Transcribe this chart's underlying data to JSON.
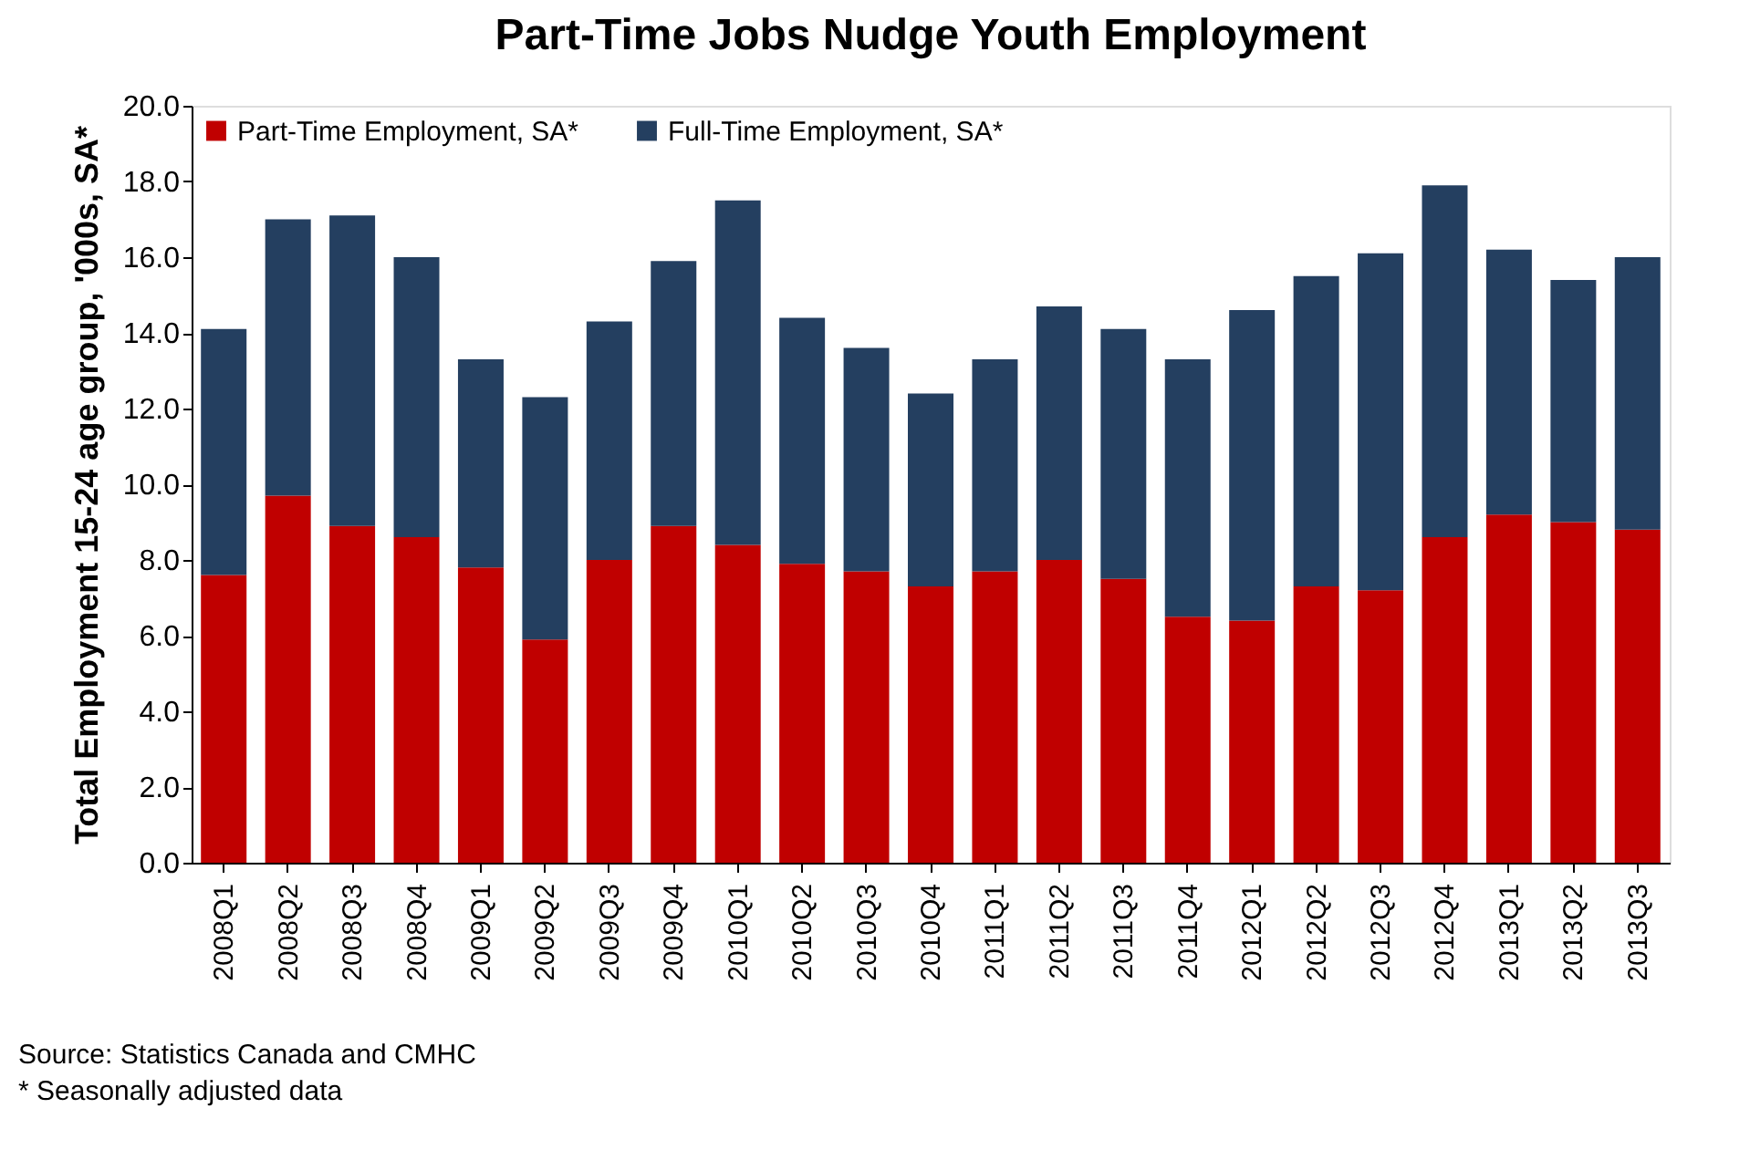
{
  "chart_data": {
    "type": "bar",
    "title": "Part-Time Jobs Nudge Youth Employment",
    "ylabel": "Total Employment 15-24 age group, '000s, SA*",
    "categories": [
      "2008Q1",
      "2008Q2",
      "2008Q3",
      "2008Q4",
      "2009Q1",
      "2009Q2",
      "2009Q3",
      "2009Q4",
      "2010Q1",
      "2010Q2",
      "2010Q3",
      "2010Q4",
      "2011Q1",
      "2011Q2",
      "2011Q3",
      "2011Q4",
      "2012Q1",
      "2012Q2",
      "2012Q3",
      "2012Q4",
      "2013Q1",
      "2013Q2",
      "2013Q3"
    ],
    "stacked": true,
    "series": [
      {
        "name": "Part-Time Employment, SA*",
        "color": "#c00000",
        "values": [
          7.6,
          9.7,
          8.9,
          8.6,
          7.8,
          5.9,
          8.0,
          8.9,
          8.4,
          7.9,
          7.7,
          7.3,
          7.7,
          8.0,
          7.5,
          6.5,
          6.4,
          7.3,
          7.2,
          8.6,
          9.2,
          9.0,
          8.8
        ]
      },
      {
        "name": "Full-Time Employment, SA*",
        "color": "#243f60",
        "values": [
          6.5,
          7.3,
          8.2,
          7.4,
          5.5,
          6.4,
          6.3,
          7.0,
          9.1,
          6.5,
          5.9,
          5.1,
          5.6,
          6.7,
          6.6,
          6.8,
          8.2,
          8.2,
          8.9,
          9.3,
          7.0,
          6.4,
          7.2
        ]
      }
    ],
    "ylim": [
      0,
      20
    ],
    "yticks": [
      {
        "value": 0,
        "label": "0.0"
      },
      {
        "value": 2,
        "label": "2.0"
      },
      {
        "value": 4,
        "label": "4.0"
      },
      {
        "value": 6,
        "label": "6.0"
      },
      {
        "value": 8,
        "label": "8.0"
      },
      {
        "value": 10,
        "label": "10.0"
      },
      {
        "value": 12,
        "label": "12.0"
      },
      {
        "value": 14,
        "label": "14.0"
      },
      {
        "value": 16,
        "label": "16.0"
      },
      {
        "value": 18,
        "label": "18.0"
      },
      {
        "value": 20,
        "label": "20.0"
      }
    ],
    "grid": false,
    "legend": "top left",
    "annotations": [
      "Source: Statistics Canada and CMHC",
      "* Seasonally adjusted data"
    ]
  }
}
